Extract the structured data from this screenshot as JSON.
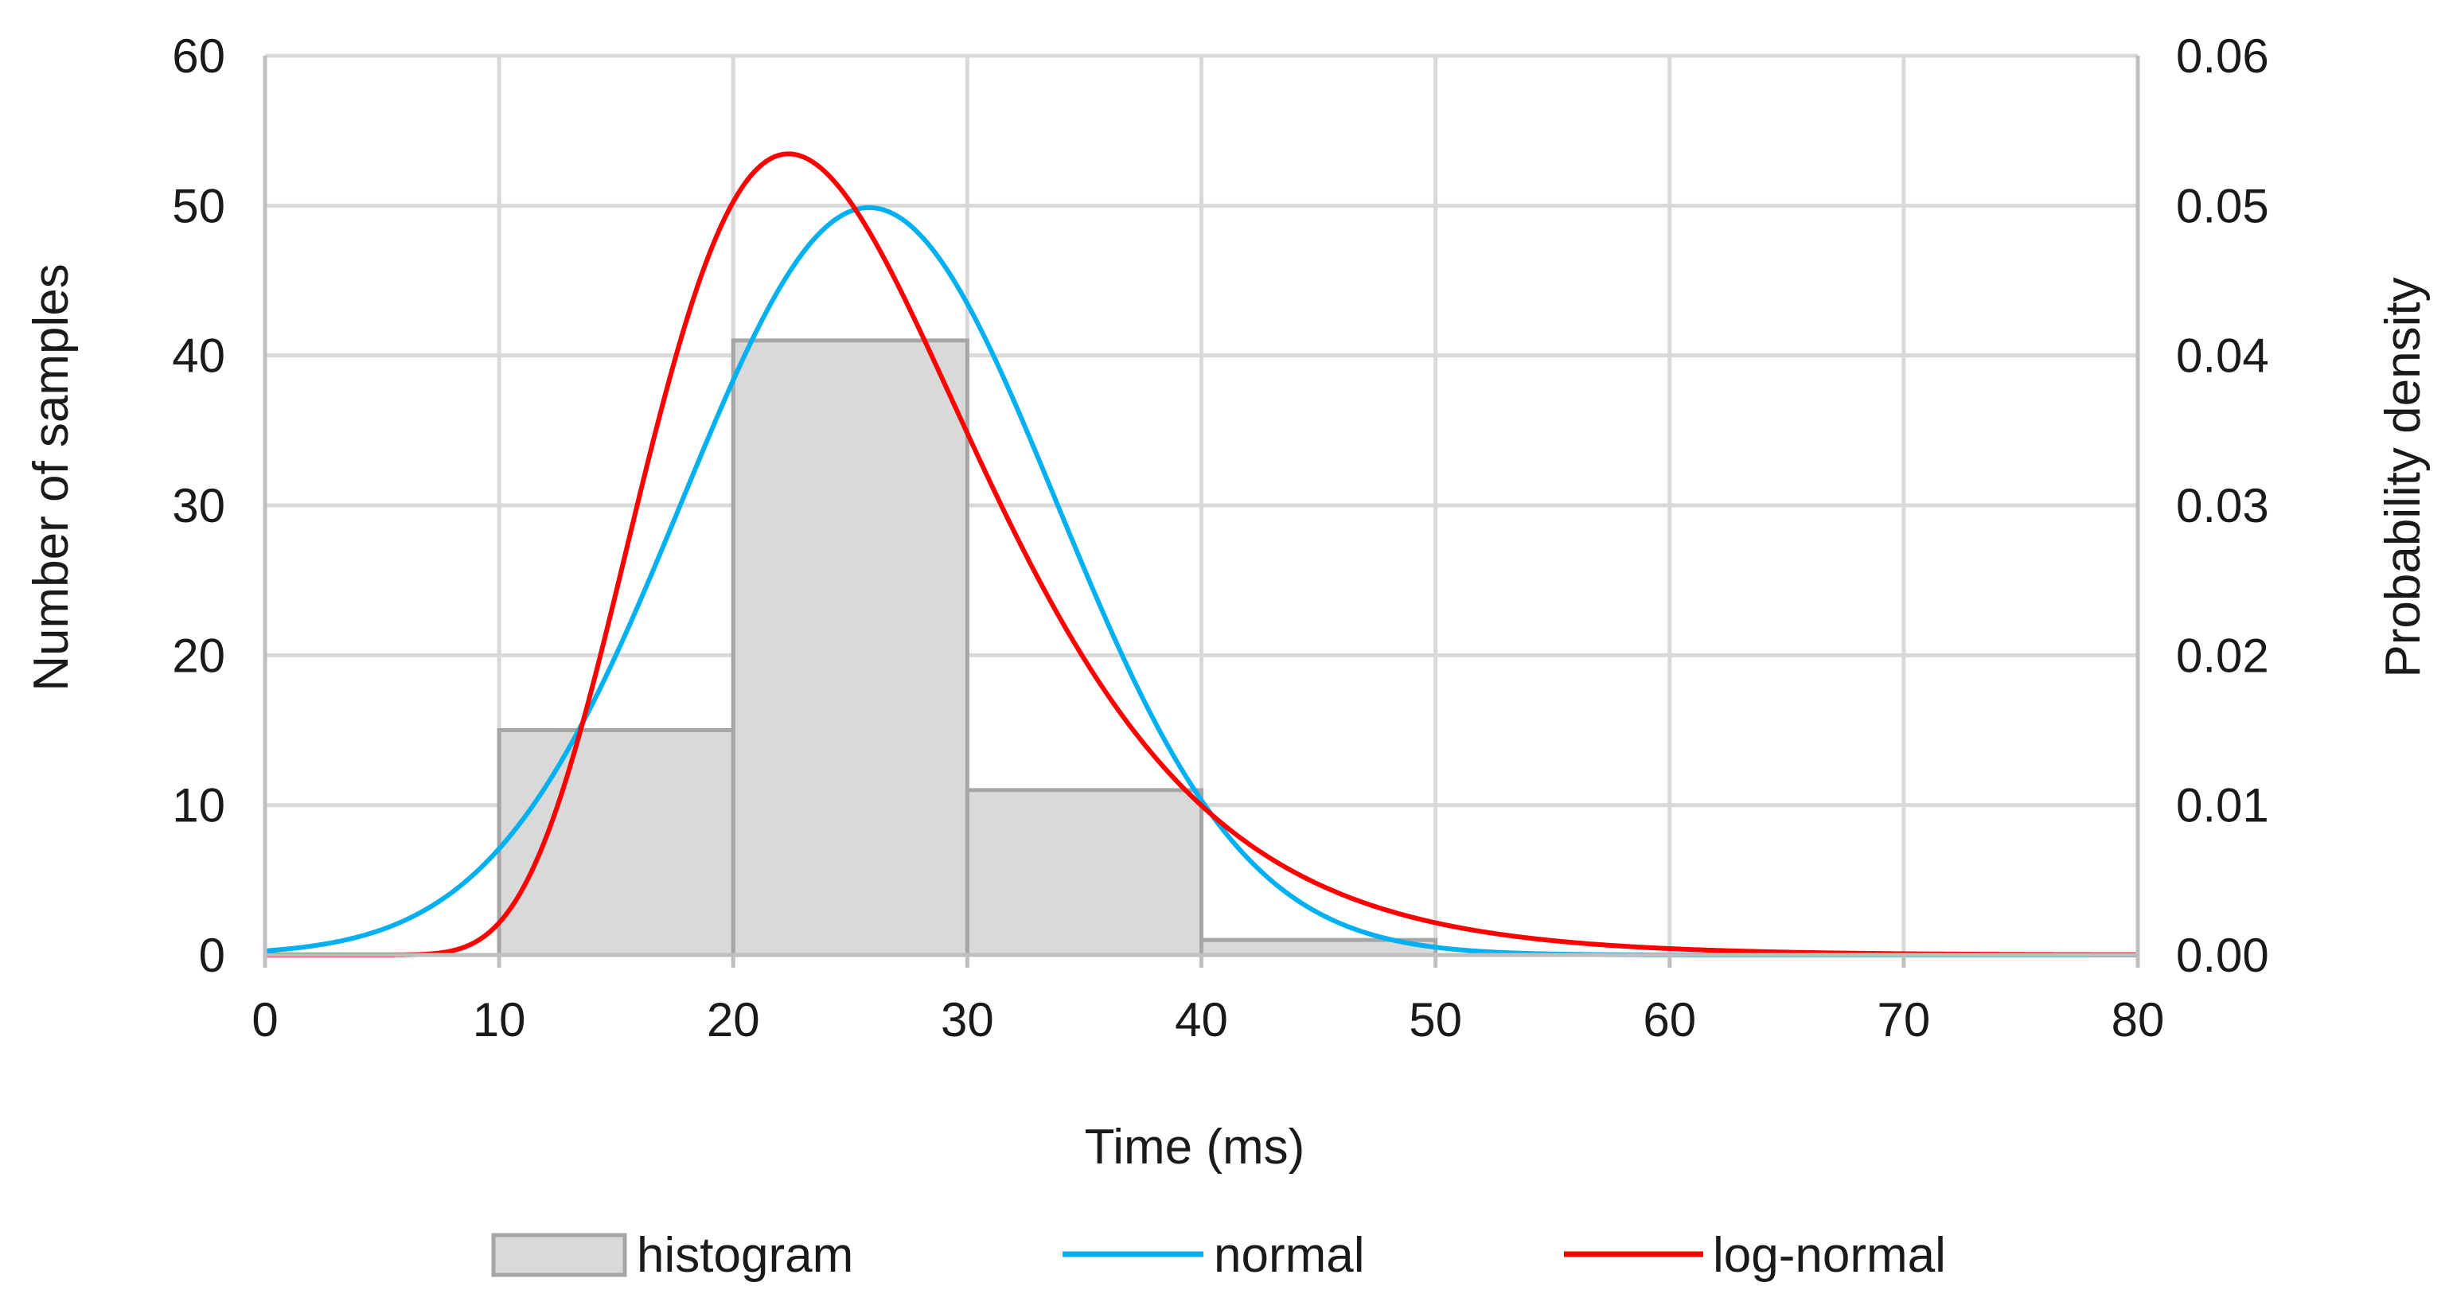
{
  "chart_data": {
    "type": "histogram-with-density-curves",
    "title": "",
    "xlabel": "Time (ms)",
    "ylabel_left": "Number of samples",
    "ylabel_right": "Probability density",
    "xlim": [
      0,
      80
    ],
    "ylim_left": [
      0,
      60
    ],
    "ylim_right": [
      0,
      0.06
    ],
    "x_ticks": [
      0,
      10,
      20,
      30,
      40,
      50,
      60,
      70,
      80
    ],
    "x_tick_labels": [
      "0",
      "10",
      "20",
      "30",
      "40",
      "50",
      "60",
      "70",
      "80"
    ],
    "y_left_ticks": [
      0,
      10,
      20,
      30,
      40,
      50,
      60
    ],
    "y_left_tick_labels": [
      "0",
      "10",
      "20",
      "30",
      "40",
      "50",
      "60"
    ],
    "y_right_ticks": [
      0,
      0.01,
      0.02,
      0.03,
      0.04,
      0.05,
      0.06
    ],
    "y_right_tick_labels": [
      "0.00",
      "0.01",
      "0.02",
      "0.03",
      "0.04",
      "0.05",
      "0.06"
    ],
    "grid": true,
    "legend_position": "bottom",
    "histogram": {
      "name": "histogram",
      "axis": "left",
      "fill": "#d9d9d9",
      "edge": "#a6a6a6",
      "bins": [
        {
          "start": 10,
          "end": 20,
          "count": 15
        },
        {
          "start": 20,
          "end": 30,
          "count": 41
        },
        {
          "start": 30,
          "end": 40,
          "count": 11
        },
        {
          "start": 40,
          "end": 50,
          "count": 1
        }
      ]
    },
    "series": [
      {
        "name": "normal",
        "axis": "right",
        "color": "#00b0f0",
        "distribution": "normal",
        "mean": 25.8,
        "std": 8.0,
        "x_sample": [
          0,
          10,
          20,
          25.8,
          30,
          40,
          50,
          60
        ],
        "y_sample": [
          0.0003,
          0.0073,
          0.0384,
          0.0499,
          0.0434,
          0.0104,
          0.0005,
          0.0
        ]
      },
      {
        "name": "log-normal",
        "axis": "right",
        "color": "#ff0000",
        "distribution": "log-normal",
        "mu": 3.208,
        "sigma": 0.3174,
        "x_sample": [
          8,
          10,
          14,
          20,
          22.3,
          30,
          40,
          50,
          60
        ],
        "y_sample": [
          0.0004,
          0.0022,
          0.0166,
          0.0524,
          0.0554,
          0.034,
          0.0103,
          0.0024,
          0.0005
        ]
      }
    ]
  }
}
